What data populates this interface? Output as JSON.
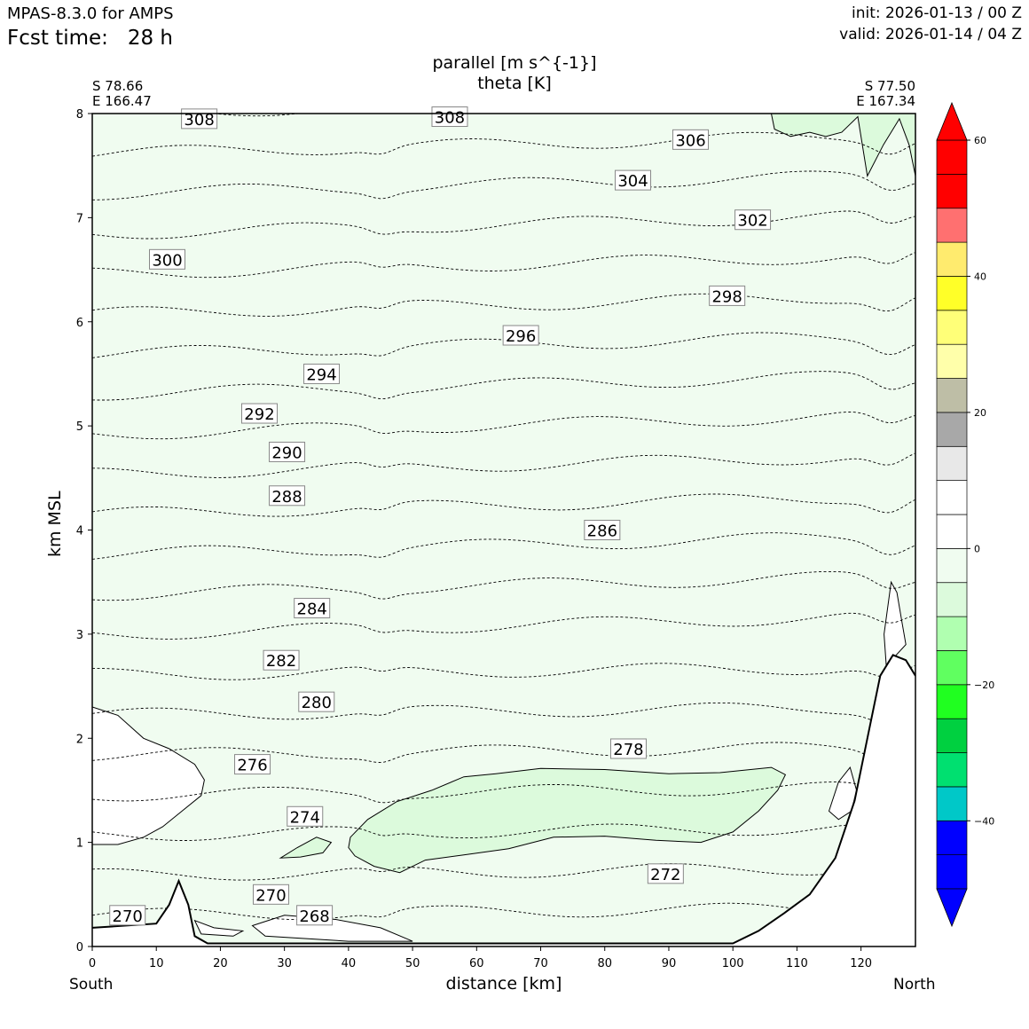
{
  "header": {
    "model": "MPAS-8.3.0 for AMPS",
    "fcst_label": "Fcst time:",
    "fcst_value": "28 h",
    "init": "init: 2026-01-13 / 00 Z",
    "valid": "valid: 2026-01-14 / 04 Z"
  },
  "corners": {
    "left_lat": "S 78.66",
    "left_lon": "E 166.47",
    "right_lat": "S 77.50",
    "right_lon": "E 167.34"
  },
  "ends": {
    "left": "South",
    "right": "North"
  },
  "chart_data": {
    "type": "heatmap",
    "title": "parallel [m s^{-1}]",
    "subtitle": "theta [K]",
    "xlabel": "distance [km]",
    "ylabel": "km MSL",
    "xlim": [
      0,
      128.5
    ],
    "ylim": [
      0,
      8
    ],
    "xticks": [
      0,
      10,
      20,
      30,
      40,
      50,
      60,
      70,
      80,
      90,
      100,
      110,
      120
    ],
    "yticks": [
      0,
      1,
      2,
      3,
      4,
      5,
      6,
      7,
      8
    ],
    "filled_field": "parallel wind speed [m s^-1]",
    "background_fill": {
      "range": [
        -10,
        -5
      ],
      "color": "#f0fcf0"
    },
    "colorbar": {
      "bounds": [
        -50,
        -45,
        -40,
        -35,
        -30,
        -25,
        -20,
        -15,
        -10,
        -5,
        0,
        5,
        10,
        15,
        20,
        25,
        30,
        35,
        40,
        45,
        50,
        55,
        60
      ],
      "colors": [
        "#0000ff",
        "#0000ff",
        "#00c8c8",
        "#00e070",
        "#00d040",
        "#20ff20",
        "#60ff60",
        "#b0ffb0",
        "#dcfadc",
        "#f0fcf0",
        "#ffffff",
        "#ffffff",
        "#e8e8e8",
        "#a8a8a8",
        "#bebea6",
        "#ffffaa",
        "#ffff78",
        "#ffff28",
        "#ffeb6e",
        "#ff7070",
        "#ff0000",
        "#ff0000"
      ],
      "ticks": [
        -40,
        -20,
        0,
        20,
        40,
        60
      ],
      "tick_labels": [
        "−40",
        "−20",
        "0",
        "20",
        "40",
        "60"
      ],
      "extend": "both"
    },
    "theta_contours": {
      "interval": 2,
      "levels": [
        268,
        270,
        272,
        274,
        276,
        278,
        280,
        282,
        284,
        286,
        288,
        290,
        292,
        294,
        296,
        298,
        300,
        302,
        304,
        306,
        308
      ],
      "labels": [
        {
          "text": "270",
          "x": 5.5,
          "z": 0.3
        },
        {
          "text": "268",
          "x": 34.7,
          "z": 0.3
        },
        {
          "text": "270",
          "x": 27.9,
          "z": 0.5
        },
        {
          "text": "272",
          "x": 89.5,
          "z": 0.7
        },
        {
          "text": "274",
          "x": 33.2,
          "z": 1.25
        },
        {
          "text": "276",
          "x": 25.0,
          "z": 1.75
        },
        {
          "text": "278",
          "x": 83.7,
          "z": 1.9
        },
        {
          "text": "280",
          "x": 35.0,
          "z": 2.35
        },
        {
          "text": "282",
          "x": 29.5,
          "z": 2.75
        },
        {
          "text": "284",
          "x": 34.3,
          "z": 3.25
        },
        {
          "text": "286",
          "x": 79.6,
          "z": 4.0
        },
        {
          "text": "288",
          "x": 30.4,
          "z": 4.33
        },
        {
          "text": "290",
          "x": 30.4,
          "z": 4.75
        },
        {
          "text": "292",
          "x": 26.1,
          "z": 5.12
        },
        {
          "text": "294",
          "x": 35.8,
          "z": 5.5
        },
        {
          "text": "296",
          "x": 66.9,
          "z": 5.87
        },
        {
          "text": "298",
          "x": 99.1,
          "z": 6.25
        },
        {
          "text": "300",
          "x": 11.7,
          "z": 6.6
        },
        {
          "text": "302",
          "x": 103.1,
          "z": 6.98
        },
        {
          "text": "304",
          "x": 84.4,
          "z": 7.36
        },
        {
          "text": "306",
          "x": 93.4,
          "z": 7.75
        },
        {
          "text": "308",
          "x": 16.7,
          "z": 7.95
        },
        {
          "text": "308",
          "x": 55.8,
          "z": 7.97
        }
      ]
    },
    "terrain_profile_km": {
      "x": [
        0,
        10,
        12,
        13.5,
        15,
        16,
        18,
        100,
        104,
        108,
        112,
        116,
        119,
        121,
        123,
        125,
        127,
        128.5
      ],
      "z": [
        0.18,
        0.22,
        0.4,
        0.63,
        0.4,
        0.1,
        0.03,
        0.03,
        0.15,
        0.32,
        0.5,
        0.85,
        1.4,
        2.0,
        2.6,
        2.8,
        2.75,
        2.6
      ]
    }
  }
}
